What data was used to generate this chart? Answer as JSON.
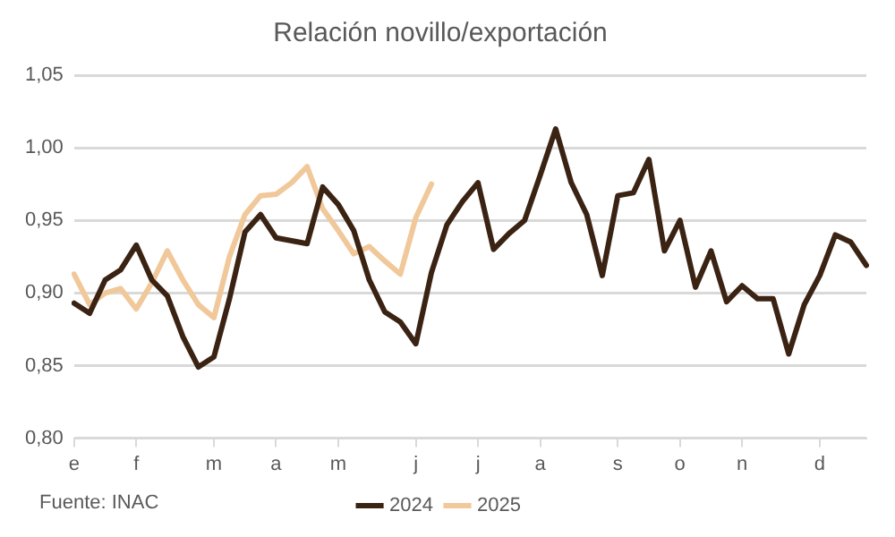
{
  "chart_data": {
    "type": "line",
    "title": "Relación novillo/exportación",
    "categories": [
      "e",
      null,
      null,
      null,
      "f",
      null,
      null,
      null,
      null,
      "m",
      null,
      null,
      null,
      "a",
      null,
      null,
      null,
      "m",
      null,
      null,
      null,
      null,
      "j",
      null,
      null,
      null,
      "j",
      null,
      null,
      null,
      "a",
      null,
      null,
      null,
      null,
      "s",
      null,
      null,
      null,
      "o",
      null,
      null,
      null,
      "n",
      null,
      null,
      null,
      null,
      "d",
      null,
      null,
      null
    ],
    "series": [
      {
        "name": "2024",
        "color": "#3b2314",
        "values": [
          0.893,
          0.886,
          0.909,
          0.916,
          0.933,
          0.909,
          0.898,
          0.87,
          0.849,
          0.856,
          0.896,
          0.942,
          0.954,
          0.938,
          0.936,
          0.934,
          0.973,
          0.961,
          0.943,
          0.909,
          0.887,
          0.88,
          0.865,
          0.914,
          0.947,
          0.963,
          0.976,
          0.93,
          0.941,
          0.95,
          0.981,
          1.013,
          0.976,
          0.954,
          0.912,
          0.967,
          0.969,
          0.992,
          0.929,
          0.95,
          0.904,
          0.929,
          0.894,
          0.905,
          0.896,
          0.896,
          0.858,
          0.892,
          0.912,
          0.94,
          0.935,
          0.919
        ]
      },
      {
        "name": "2025",
        "color": "#f0c89a",
        "values": [
          0.913,
          0.892,
          0.9,
          0.903,
          0.889,
          0.907,
          0.929,
          0.909,
          0.892,
          0.883,
          0.925,
          0.954,
          0.967,
          0.968,
          0.976,
          0.987,
          0.958,
          0.943,
          0.927,
          0.932,
          0.922,
          0.913,
          0.952,
          0.975,
          null,
          null,
          null,
          null,
          null,
          null,
          null,
          null,
          null,
          null,
          null,
          null,
          null,
          null,
          null,
          null,
          null,
          null,
          null,
          null,
          null,
          null,
          null,
          null,
          null,
          null,
          null,
          null
        ]
      }
    ],
    "ylim": [
      0.8,
      1.05
    ],
    "yticks": [
      {
        "value": 0.8,
        "label": "0,80"
      },
      {
        "value": 0.85,
        "label": "0,85"
      },
      {
        "value": 0.9,
        "label": "0,90"
      },
      {
        "value": 0.95,
        "label": "0,95"
      },
      {
        "value": 1.0,
        "label": "1,00"
      },
      {
        "value": 1.05,
        "label": "1,05"
      }
    ],
    "grid": "y",
    "legend": "bottom",
    "marker": "none",
    "line_style": "solid",
    "annotations": [
      "Fuente: INAC"
    ]
  }
}
